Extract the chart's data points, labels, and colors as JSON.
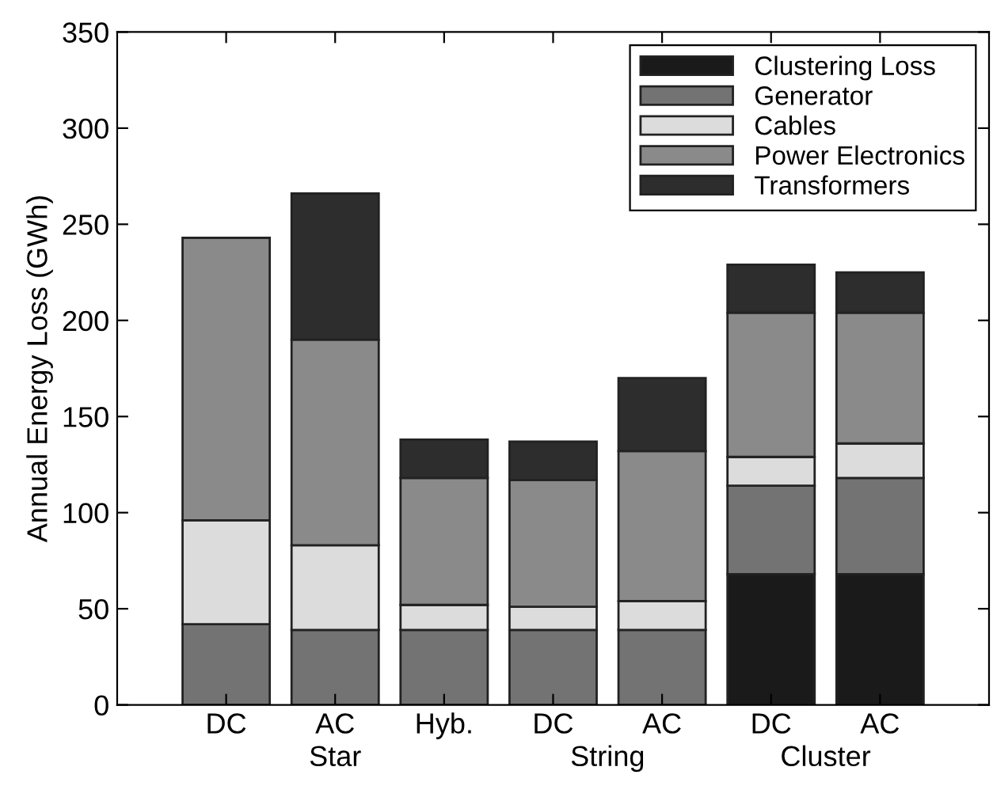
{
  "chart_data": {
    "type": "bar",
    "stacked": true,
    "ylabel": "Annual Energy Loss (GWh)",
    "categories": [
      "DC",
      "AC",
      "Hyb.",
      "DC",
      "AC",
      "DC",
      "AC"
    ],
    "series": [
      {
        "name": "Clustering Loss",
        "color": "#1a1a1a",
        "values": [
          0,
          0,
          0,
          0,
          0,
          68,
          68
        ]
      },
      {
        "name": "Generator",
        "color": "#737373",
        "values": [
          42,
          39,
          39,
          39,
          39,
          46,
          50
        ]
      },
      {
        "name": "Cables",
        "color": "#dcdcdc",
        "values": [
          54,
          44,
          13,
          12,
          15,
          15,
          18
        ]
      },
      {
        "name": "Power Electronics",
        "color": "#8a8a8a",
        "values": [
          147,
          107,
          66,
          66,
          78,
          75,
          68
        ]
      },
      {
        "name": "Transformers",
        "color": "#2d2d2d",
        "values": [
          0,
          76,
          20,
          20,
          38,
          25,
          21
        ]
      }
    ],
    "annotations": [
      "Star",
      "String",
      "Cluster"
    ],
    "ylim": [
      0,
      350
    ],
    "yticks": [
      0,
      50,
      100,
      150,
      200,
      250,
      300,
      350
    ],
    "grid": false,
    "legend": "top right"
  }
}
